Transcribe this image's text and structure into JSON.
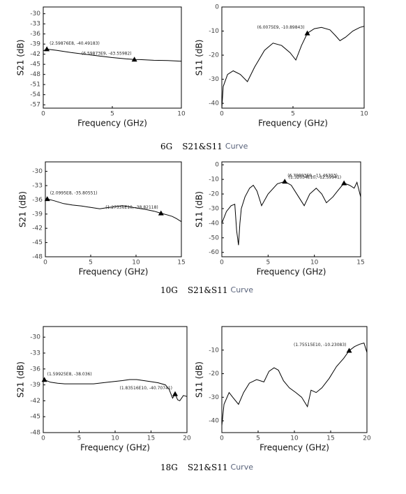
{
  "chart_data": [
    {
      "type": "line",
      "xlabel": "Frequency (GHz)",
      "ylabel": "S21 (dB)",
      "color": "#000000",
      "xlim": [
        0,
        10
      ],
      "xticks": [
        0,
        5,
        10
      ],
      "ylim": [
        -58,
        -28
      ],
      "yticks": [
        -30,
        -33,
        -36,
        -39,
        -42,
        -45,
        -48,
        -51,
        -54,
        -57
      ],
      "x": [
        0,
        0.26,
        1,
        2,
        3,
        4,
        5,
        6,
        6.6,
        7,
        8,
        9,
        10
      ],
      "values": [
        -41,
        -40.49,
        -40.9,
        -41.5,
        -42,
        -42.5,
        -43,
        -43.4,
        -43.56,
        -43.6,
        -43.8,
        -43.9,
        -44.1
      ],
      "markers": [
        {
          "x": 0.259876,
          "y": -40.49183,
          "label": "(2.59876E8, -40.49183)"
        },
        {
          "x": 6.59873,
          "y": -43.55982,
          "label": "(6.59873E9, -43.55982)"
        }
      ]
    },
    {
      "type": "line",
      "xlabel": "Frequency (GHz)",
      "ylabel": "S11 (dB)",
      "color": "#000000",
      "xlim": [
        0,
        10
      ],
      "xticks": [
        0,
        5,
        10
      ],
      "ylim": [
        -42,
        0
      ],
      "yticks": [
        0,
        -10,
        -20,
        -30,
        -40
      ],
      "x": [
        0,
        0.1,
        0.4,
        0.8,
        1.3,
        1.8,
        2.3,
        3,
        3.6,
        4.2,
        4.8,
        5.2,
        5.6,
        6.0075,
        6.5,
        7,
        7.6,
        8,
        8.3,
        8.7,
        9.2,
        9.7,
        10
      ],
      "values": [
        -42,
        -33,
        -28,
        -26.5,
        -28,
        -31,
        -25,
        -18,
        -15,
        -16,
        -19,
        -22,
        -16,
        -10.9,
        -9,
        -8.5,
        -9.5,
        -12,
        -14,
        -12.5,
        -10,
        -8.5,
        -8
      ],
      "markers": [
        {
          "x": 6.0075,
          "y": -10.89843,
          "label": "(6.0075E9, -10.89843)"
        }
      ]
    },
    {
      "type": "line",
      "xlabel": "Frequency (GHz)",
      "ylabel": "S21 (dB)",
      "color": "#000000",
      "xlim": [
        0,
        15
      ],
      "xticks": [
        0,
        5,
        10,
        15
      ],
      "ylim": [
        -48,
        -28
      ],
      "yticks": [
        -30,
        -33,
        -36,
        -39,
        -42,
        -45,
        -48
      ],
      "x": [
        0,
        0.21,
        1,
        2,
        3,
        4,
        5,
        6,
        7,
        8,
        8.5,
        9,
        10,
        11,
        12,
        12.75,
        13.5,
        14,
        14.5,
        15
      ],
      "values": [
        -35.9,
        -35.81,
        -36.2,
        -36.8,
        -37.1,
        -37.3,
        -37.6,
        -37.9,
        -37.6,
        -37.4,
        -37.2,
        -37.4,
        -37.7,
        -38,
        -38.4,
        -38.82,
        -39.2,
        -39.5,
        -40,
        -40.6
      ],
      "markers": [
        {
          "x": 0.20995,
          "y": -35.80551,
          "label": "(2.0995E8, -35.80551)"
        },
        {
          "x": 12.7536,
          "y": -38.82118,
          "label": "(1.27536E10, -38.82118)"
        }
      ]
    },
    {
      "type": "line",
      "xlabel": "Frequency (GHz)",
      "ylabel": "S11 (dB)",
      "color": "#000000",
      "xlim": [
        0,
        15
      ],
      "xticks": [
        0,
        5,
        10,
        15
      ],
      "ylim": [
        -63,
        2
      ],
      "yticks": [
        0,
        -10,
        -20,
        -30,
        -40,
        -50,
        -60
      ],
      "x": [
        0,
        0.5,
        1,
        1.4,
        1.6,
        1.8,
        1.95,
        2.1,
        2.5,
        3,
        3.4,
        3.8,
        4.3,
        5,
        6,
        6.8,
        7.5,
        8.3,
        8.9,
        9.5,
        10.2,
        10.8,
        11.3,
        12,
        12.5,
        13.2,
        13.8,
        14.3,
        14.6,
        15
      ],
      "values": [
        -40,
        -32,
        -28,
        -27,
        -45,
        -55,
        -40,
        -30,
        -22,
        -16,
        -14,
        -18,
        -28,
        -20,
        -13,
        -11.47,
        -14,
        -22,
        -28,
        -20,
        -16,
        -20,
        -26,
        -22,
        -18,
        -12.6,
        -14,
        -16,
        -12,
        -22
      ],
      "markers": [
        {
          "x": 6.79893,
          "y": -11.46703,
          "label": "(6.79893E9, -11.46703)"
        },
        {
          "x": 13.2034,
          "y": -12.59941,
          "label": "(1.32034E10, -12.59941)"
        }
      ]
    },
    {
      "type": "line",
      "xlabel": "Frequency (GHz)",
      "ylabel": "S21 (dB)",
      "color": "#000000",
      "xlim": [
        0,
        20
      ],
      "xticks": [
        0,
        5,
        10,
        15,
        20
      ],
      "ylim": [
        -48,
        -28
      ],
      "yticks": [
        -30,
        -33,
        -36,
        -39,
        -42,
        -45,
        -48
      ],
      "x": [
        0,
        0.16,
        1,
        2,
        3,
        5,
        7,
        9,
        11,
        12,
        13,
        14,
        15,
        16,
        17,
        17.5,
        18,
        18.35,
        18.7,
        19,
        19.5,
        20
      ],
      "values": [
        -38.2,
        -38.04,
        -38.5,
        -38.7,
        -38.8,
        -38.8,
        -38.8,
        -38.5,
        -38.2,
        -38,
        -38,
        -38.2,
        -38.4,
        -38.6,
        -39,
        -39.8,
        -41.5,
        -40.71,
        -41.8,
        -42,
        -41,
        -41.2
      ],
      "markers": [
        {
          "x": 0.159925,
          "y": -38.036,
          "label": "(1.59925E8, -38.036)"
        },
        {
          "x": 18.3516,
          "y": -40.70741,
          "label": "(1.83516E10, -40.70741)"
        }
      ]
    },
    {
      "type": "line",
      "xlabel": "Frequency (GHz)",
      "ylabel": "S11 (dB)",
      "color": "#000000",
      "xlim": [
        0,
        20
      ],
      "xticks": [
        0,
        5,
        10,
        15,
        20
      ],
      "ylim": [
        -45,
        0
      ],
      "yticks": [
        -10,
        -20,
        -30,
        -40
      ],
      "x": [
        0,
        0.3,
        1,
        1.5,
        2.3,
        3,
        3.8,
        4.8,
        5.8,
        6.5,
        7.2,
        7.8,
        8.5,
        9.3,
        10.2,
        11,
        11.8,
        12.3,
        13,
        13.8,
        14.8,
        15.8,
        16.8,
        17.55,
        18.3,
        19,
        19.6,
        20
      ],
      "values": [
        -42,
        -33,
        -28,
        -30,
        -33,
        -28,
        -24,
        -22.5,
        -23.5,
        -19,
        -17.5,
        -18.5,
        -23,
        -26,
        -28,
        -30,
        -34,
        -27,
        -28,
        -26,
        -22,
        -17,
        -13.5,
        -10.23,
        -8.5,
        -7.5,
        -7,
        -11
      ],
      "markers": [
        {
          "x": 17.5515,
          "y": -10.23083,
          "label": "(1.75515E10, -10.23083)"
        }
      ]
    }
  ],
  "captions": [
    [
      "6G",
      "S21&S11",
      "Curve"
    ],
    [
      "10G",
      "S21&S11",
      "Curve"
    ],
    [
      "18G",
      "S21&S11",
      "Curve"
    ]
  ]
}
